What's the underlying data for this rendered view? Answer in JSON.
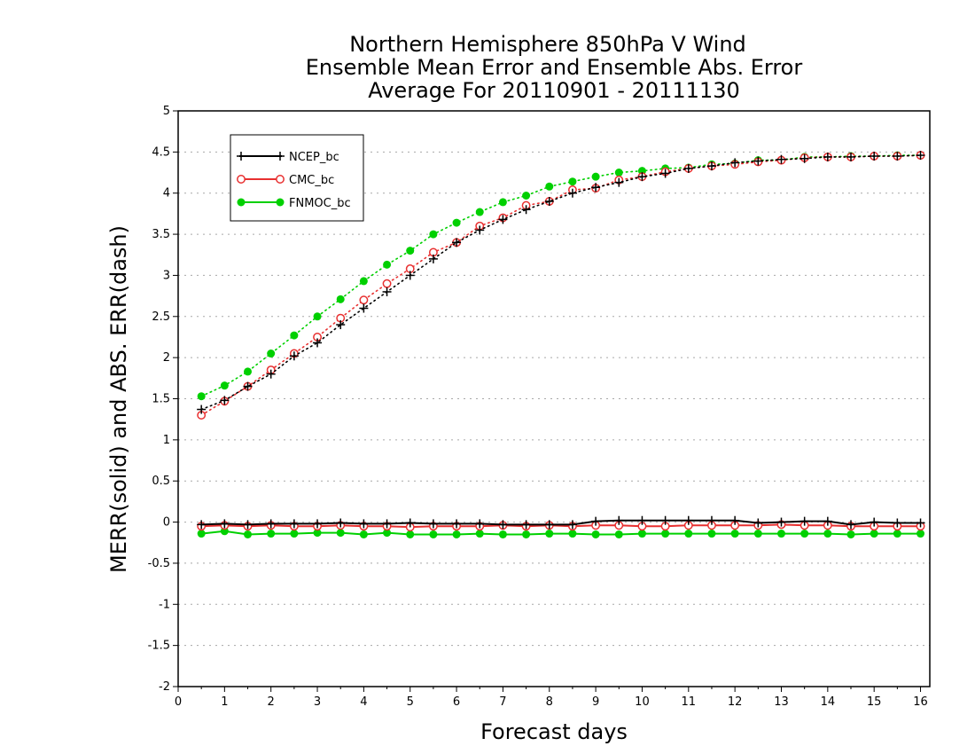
{
  "chart_data": {
    "type": "line",
    "title": [
      "Northern Hemisphere 850hPa V Wind",
      "Ensemble Mean Error and Ensemble Abs. Error",
      "Average For 20110901 - 20111130"
    ],
    "xlabel": "Forecast days",
    "ylabel": "MERR(solid) and ABS. ERR(dash)",
    "xlim": [
      0,
      16.2
    ],
    "ylim": [
      -2,
      5
    ],
    "xticks": [
      0,
      1,
      2,
      3,
      4,
      5,
      6,
      7,
      8,
      9,
      10,
      11,
      12,
      13,
      14,
      15,
      16
    ],
    "yticks": [
      -2,
      -1.5,
      -1,
      -0.5,
      0,
      0.5,
      1,
      1.5,
      2,
      2.5,
      3,
      3.5,
      4,
      4.5,
      5
    ],
    "ytick_labels": [
      "-2",
      "-1.5",
      "-1",
      "-0.5",
      "0",
      "0.5",
      "1",
      "1.5",
      "2",
      "2.5",
      "3",
      "3.5",
      "4",
      "4.5",
      "5"
    ],
    "grid": "horizontal-dotted",
    "legend_position": "top-left",
    "x": [
      0.5,
      1,
      1.5,
      2,
      2.5,
      3,
      3.5,
      4,
      4.5,
      5,
      5.5,
      6,
      6.5,
      7,
      7.5,
      8,
      8.5,
      9,
      9.5,
      10,
      10.5,
      11,
      11.5,
      12,
      12.5,
      13,
      13.5,
      14,
      14.5,
      15,
      15.5,
      16
    ],
    "series": [
      {
        "name": "NCEP_bc",
        "color": "#000000",
        "marker": "plus",
        "abs_err": [
          1.37,
          1.48,
          1.65,
          1.8,
          2.02,
          2.18,
          2.4,
          2.6,
          2.8,
          3.0,
          3.2,
          3.4,
          3.55,
          3.68,
          3.8,
          3.9,
          4.0,
          4.07,
          4.13,
          4.2,
          4.24,
          4.3,
          4.33,
          4.37,
          4.39,
          4.41,
          4.42,
          4.44,
          4.44,
          4.45,
          4.45,
          4.46
        ],
        "mean_err": [
          -0.03,
          -0.02,
          -0.03,
          -0.02,
          -0.02,
          -0.02,
          -0.01,
          -0.02,
          -0.02,
          -0.01,
          -0.02,
          -0.02,
          -0.02,
          -0.03,
          -0.03,
          -0.03,
          -0.03,
          0.01,
          0.02,
          0.02,
          0.02,
          0.02,
          0.02,
          0.02,
          -0.01,
          0.0,
          0.01,
          0.01,
          -0.03,
          0.0,
          -0.01,
          -0.01
        ]
      },
      {
        "name": "CMC_bc",
        "color": "#e83030",
        "marker": "open-circle",
        "abs_err": [
          1.3,
          1.47,
          1.65,
          1.85,
          2.05,
          2.25,
          2.48,
          2.7,
          2.9,
          3.08,
          3.28,
          3.4,
          3.6,
          3.7,
          3.85,
          3.9,
          4.04,
          4.06,
          4.16,
          4.2,
          4.26,
          4.3,
          4.33,
          4.35,
          4.38,
          4.4,
          4.43,
          4.44,
          4.44,
          4.45,
          4.45,
          4.46
        ],
        "mean_err": [
          -0.05,
          -0.04,
          -0.05,
          -0.04,
          -0.05,
          -0.05,
          -0.04,
          -0.05,
          -0.05,
          -0.06,
          -0.05,
          -0.05,
          -0.05,
          -0.04,
          -0.05,
          -0.04,
          -0.05,
          -0.04,
          -0.04,
          -0.05,
          -0.05,
          -0.04,
          -0.04,
          -0.04,
          -0.04,
          -0.03,
          -0.04,
          -0.04,
          -0.05,
          -0.05,
          -0.05,
          -0.05
        ]
      },
      {
        "name": "FNMOC_bc",
        "color": "#00d000",
        "marker": "filled-circle",
        "abs_err": [
          1.53,
          1.66,
          1.83,
          2.05,
          2.27,
          2.5,
          2.71,
          2.93,
          3.13,
          3.3,
          3.5,
          3.64,
          3.77,
          3.89,
          3.97,
          4.08,
          4.14,
          4.2,
          4.25,
          4.27,
          4.3,
          4.31,
          4.35,
          4.36,
          4.4,
          4.4,
          4.44,
          4.44,
          4.45,
          4.45,
          4.46,
          4.46
        ],
        "mean_err": [
          -0.14,
          -0.11,
          -0.15,
          -0.14,
          -0.14,
          -0.13,
          -0.13,
          -0.15,
          -0.13,
          -0.15,
          -0.15,
          -0.15,
          -0.14,
          -0.15,
          -0.15,
          -0.14,
          -0.14,
          -0.15,
          -0.15,
          -0.14,
          -0.14,
          -0.14,
          -0.14,
          -0.14,
          -0.14,
          -0.14,
          -0.14,
          -0.14,
          -0.15,
          -0.14,
          -0.14,
          -0.14
        ]
      }
    ]
  }
}
